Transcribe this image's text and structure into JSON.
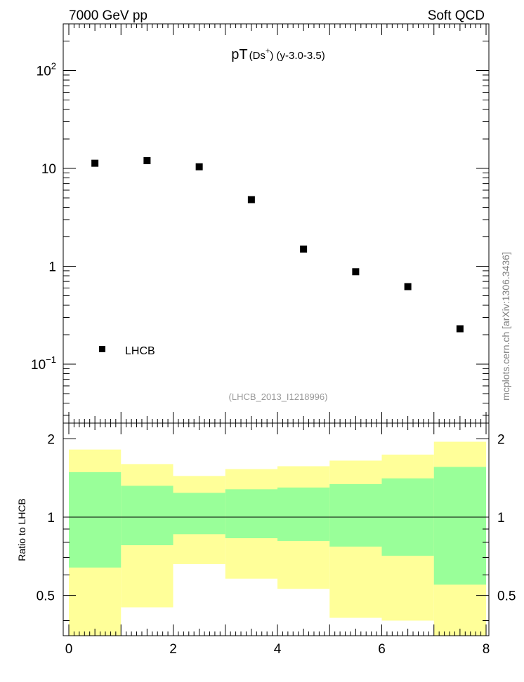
{
  "header": {
    "left": "7000 GeV pp",
    "right": "Soft QCD"
  },
  "side_label": "mcplots.cern.ch [arXiv:1306.3436]",
  "chart_data": [
    {
      "type": "scatter",
      "title": {
        "main": "pT",
        "paren": "(Ds",
        "sup": "+",
        "close": ")",
        "rest": " (y-3.0-3.5)"
      },
      "analysis_label": "(LHCB_2013_I1218996)",
      "y_scale": "log",
      "xlim": [
        0,
        8
      ],
      "ylim": [
        0.025,
        300
      ],
      "y_ticks": [
        {
          "value": 100,
          "base": "10",
          "exp": "2"
        },
        {
          "value": 10,
          "base": "10",
          "exp": ""
        },
        {
          "value": 1,
          "base": "1",
          "exp": ""
        },
        {
          "value": 0.1,
          "base": "10",
          "exp": "−1"
        }
      ],
      "series": [
        {
          "name": "LHCB",
          "color": "#000000",
          "x": [
            0.5,
            1.5,
            2.5,
            3.5,
            4.5,
            5.5,
            6.5,
            7.5
          ],
          "y": [
            11.3,
            12.0,
            10.4,
            4.8,
            1.5,
            0.88,
            0.62,
            0.23
          ]
        }
      ],
      "legend": "bottom-left"
    },
    {
      "type": "area",
      "ylabel": "Ratio to LHCB",
      "xlim": [
        0,
        8
      ],
      "ylim": [
        0.35,
        2.3
      ],
      "y_ticks": [
        0.5,
        1,
        2
      ],
      "x_ticks": [
        0,
        2,
        4,
        6,
        8
      ],
      "reference_line": 1,
      "bins": [
        [
          0,
          1
        ],
        [
          1,
          2
        ],
        [
          2,
          3
        ],
        [
          3,
          4
        ],
        [
          4,
          5
        ],
        [
          5,
          6
        ],
        [
          6,
          7
        ],
        [
          7,
          8
        ]
      ],
      "bands": [
        {
          "color": "#ffff99",
          "lower": [
            0.3,
            0.45,
            0.66,
            0.58,
            0.53,
            0.41,
            0.4,
            0.3
          ],
          "upper": [
            1.82,
            1.6,
            1.44,
            1.53,
            1.57,
            1.65,
            1.74,
            1.95
          ]
        },
        {
          "color": "#99ff99",
          "lower": [
            0.64,
            0.78,
            0.86,
            0.83,
            0.81,
            0.77,
            0.71,
            0.55
          ],
          "upper": [
            1.49,
            1.32,
            1.24,
            1.28,
            1.3,
            1.34,
            1.41,
            1.56
          ]
        }
      ]
    }
  ]
}
